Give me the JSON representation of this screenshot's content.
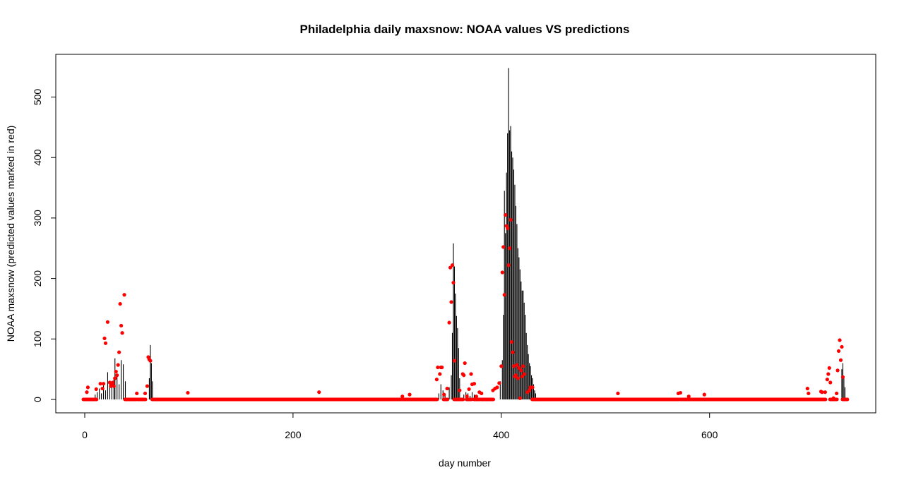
{
  "chart_data": {
    "type": "scatter",
    "title": "Philadelphia daily maxsnow: NOAA values VS predictions",
    "xlabel": "day number",
    "ylabel": "NOAA maxsnow (predicted values marked in red)",
    "xlim": [
      0,
      731
    ],
    "ylim": [
      0,
      550
    ],
    "x_ticks": [
      0,
      200,
      400,
      600
    ],
    "y_ticks": [
      0,
      100,
      200,
      300,
      400,
      500
    ],
    "grid": false,
    "legend": "none",
    "colors": {
      "observed": "#000000",
      "predicted": "#ff0000"
    },
    "observed_series": {
      "name": "",
      "style": "vertical-lines",
      "points": [
        [
          10,
          8
        ],
        [
          12,
          12
        ],
        [
          14,
          18
        ],
        [
          16,
          10
        ],
        [
          18,
          25
        ],
        [
          20,
          15
        ],
        [
          22,
          45
        ],
        [
          24,
          30
        ],
        [
          26,
          20
        ],
        [
          28,
          35
        ],
        [
          29,
          68
        ],
        [
          31,
          40
        ],
        [
          33,
          25
        ],
        [
          35,
          65
        ],
        [
          37,
          58
        ],
        [
          39,
          30
        ],
        [
          62,
          35
        ],
        [
          63,
          90
        ],
        [
          64,
          60
        ],
        [
          65,
          30
        ],
        [
          340,
          10
        ],
        [
          342,
          25
        ],
        [
          344,
          15
        ],
        [
          346,
          8
        ],
        [
          350,
          20
        ],
        [
          352,
          40
        ],
        [
          353,
          110
        ],
        [
          354,
          258
        ],
        [
          355,
          220
        ],
        [
          356,
          175
        ],
        [
          357,
          138
        ],
        [
          358,
          118
        ],
        [
          359,
          85
        ],
        [
          360,
          35
        ],
        [
          364,
          8
        ],
        [
          366,
          12
        ],
        [
          368,
          10
        ],
        [
          370,
          6
        ],
        [
          372,
          12
        ],
        [
          374,
          8
        ],
        [
          399,
          30
        ],
        [
          401,
          65
        ],
        [
          402,
          140
        ],
        [
          403,
          345
        ],
        [
          404,
          275
        ],
        [
          405,
          375
        ],
        [
          406,
          440
        ],
        [
          407,
          548
        ],
        [
          408,
          445
        ],
        [
          409,
          452
        ],
        [
          410,
          410
        ],
        [
          411,
          400
        ],
        [
          412,
          380
        ],
        [
          413,
          355
        ],
        [
          414,
          320
        ],
        [
          415,
          290
        ],
        [
          416,
          250
        ],
        [
          417,
          235
        ],
        [
          418,
          215
        ],
        [
          419,
          195
        ],
        [
          420,
          180
        ],
        [
          421,
          180
        ],
        [
          422,
          160
        ],
        [
          423,
          140
        ],
        [
          424,
          110
        ],
        [
          425,
          90
        ],
        [
          426,
          75
        ],
        [
          427,
          60
        ],
        [
          428,
          55
        ],
        [
          429,
          40
        ],
        [
          430,
          35
        ],
        [
          431,
          25
        ],
        [
          432,
          15
        ],
        [
          433,
          10
        ],
        [
          727,
          50
        ],
        [
          728,
          60
        ],
        [
          729,
          35
        ],
        [
          730,
          20
        ]
      ]
    },
    "predicted_series": {
      "name": "",
      "style": "points",
      "points": [
        [
          2,
          12
        ],
        [
          3,
          20
        ],
        [
          11,
          17
        ],
        [
          15,
          26
        ],
        [
          17,
          18
        ],
        [
          18,
          26
        ],
        [
          19,
          101
        ],
        [
          20,
          93
        ],
        [
          22,
          128
        ],
        [
          24,
          28
        ],
        [
          25,
          22
        ],
        [
          26,
          24
        ],
        [
          27,
          28
        ],
        [
          28,
          22
        ],
        [
          29,
          35
        ],
        [
          30,
          46
        ],
        [
          31,
          40
        ],
        [
          32,
          57
        ],
        [
          33,
          78
        ],
        [
          34,
          158
        ],
        [
          35,
          122
        ],
        [
          36,
          110
        ],
        [
          38,
          173
        ],
        [
          50,
          10
        ],
        [
          58,
          10
        ],
        [
          60,
          22
        ],
        [
          61,
          70
        ],
        [
          62,
          66
        ],
        [
          63,
          64
        ],
        [
          99,
          11
        ],
        [
          225,
          12
        ],
        [
          305,
          5
        ],
        [
          312,
          8
        ],
        [
          338,
          33
        ],
        [
          339,
          53
        ],
        [
          341,
          42
        ],
        [
          342,
          53
        ],
        [
          343,
          53
        ],
        [
          345,
          8
        ],
        [
          348,
          18
        ],
        [
          350,
          127
        ],
        [
          351,
          218
        ],
        [
          352,
          161
        ],
        [
          353,
          222
        ],
        [
          354,
          193
        ],
        [
          355,
          64
        ],
        [
          360,
          15
        ],
        [
          363,
          42
        ],
        [
          364,
          40
        ],
        [
          365,
          60
        ],
        [
          367,
          5
        ],
        [
          369,
          17
        ],
        [
          371,
          42
        ],
        [
          372,
          25
        ],
        [
          374,
          26
        ],
        [
          376,
          5
        ],
        [
          379,
          12
        ],
        [
          381,
          10
        ],
        [
          392,
          15
        ],
        [
          394,
          18
        ],
        [
          396,
          20
        ],
        [
          398,
          27
        ],
        [
          400,
          55
        ],
        [
          401,
          210
        ],
        [
          402,
          252
        ],
        [
          403,
          173
        ],
        [
          404,
          305
        ],
        [
          405,
          287
        ],
        [
          406,
          283
        ],
        [
          407,
          222
        ],
        [
          408,
          250
        ],
        [
          409,
          297
        ],
        [
          410,
          95
        ],
        [
          411,
          78
        ],
        [
          412,
          55
        ],
        [
          413,
          38
        ],
        [
          414,
          40
        ],
        [
          415,
          57
        ],
        [
          416,
          35
        ],
        [
          417,
          52
        ],
        [
          418,
          2
        ],
        [
          419,
          48
        ],
        [
          420,
          38
        ],
        [
          421,
          55
        ],
        [
          422,
          42
        ],
        [
          425,
          12
        ],
        [
          427,
          15
        ],
        [
          428,
          20
        ],
        [
          430,
          20
        ],
        [
          512,
          10
        ],
        [
          570,
          10
        ],
        [
          572,
          11
        ],
        [
          580,
          5
        ],
        [
          595,
          8
        ],
        [
          694,
          18
        ],
        [
          695,
          10
        ],
        [
          707,
          13
        ],
        [
          708,
          12
        ],
        [
          711,
          12
        ],
        [
          713,
          33
        ],
        [
          714,
          42
        ],
        [
          715,
          52
        ],
        [
          716,
          28
        ],
        [
          719,
          2
        ],
        [
          722,
          10
        ],
        [
          723,
          48
        ],
        [
          724,
          80
        ],
        [
          725,
          98
        ],
        [
          726,
          65
        ],
        [
          727,
          87
        ],
        [
          728,
          37
        ]
      ]
    }
  }
}
